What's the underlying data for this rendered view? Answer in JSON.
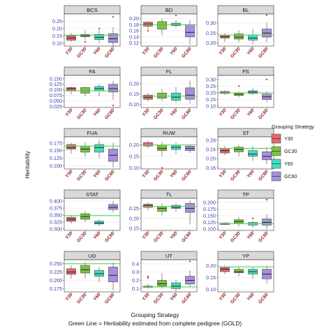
{
  "chart_data": {
    "type": "box",
    "xlabel": "Grouping Strategy",
    "ylabel": "Heritability",
    "caption": "Green Line = Heritability estimated from complete pedigree (GOLD)",
    "categories": [
      "Y30",
      "GC30",
      "Y60",
      "GC60"
    ],
    "legend": {
      "title": "Grouping Strategy",
      "items": [
        "Y30",
        "GC30",
        "Y60",
        "GC60"
      ],
      "position": "right"
    },
    "colors": {
      "Y30": "#e8646f",
      "GC30": "#7dc241",
      "Y60": "#3fdfc0",
      "GC60": "#a98ee0",
      "gold_line": "#55d555",
      "strip": "#d9d9d9",
      "outlier": "#cc1f2f",
      "tick_label": "#3a3fa8",
      "category_label": "#8b1a1a"
    },
    "panels": [
      {
        "name": "BCS",
        "yticks": [
          0.1,
          0.15,
          0.2,
          0.25
        ],
        "ylim": [
          0.08,
          0.3
        ],
        "gold": 0.155,
        "boxes": [
          {
            "min": 0.11,
            "q1": 0.12,
            "med": 0.135,
            "q3": 0.15,
            "max": 0.17,
            "out": []
          },
          {
            "min": 0.125,
            "q1": 0.145,
            "med": 0.15,
            "q3": 0.16,
            "max": 0.19,
            "out": [
              0.11
            ]
          },
          {
            "min": 0.1,
            "q1": 0.125,
            "med": 0.14,
            "q3": 0.16,
            "max": 0.19,
            "out": [
              0.2
            ]
          },
          {
            "min": 0.08,
            "q1": 0.105,
            "med": 0.13,
            "q3": 0.165,
            "max": 0.21,
            "out": [
              0.28
            ]
          }
        ]
      },
      {
        "name": "BD",
        "yticks": [
          0.12,
          0.14,
          0.16,
          0.18,
          0.2
        ],
        "ylim": [
          0.11,
          0.215
        ],
        "gold": 0.18,
        "boxes": [
          {
            "min": 0.165,
            "q1": 0.175,
            "med": 0.182,
            "q3": 0.188,
            "max": 0.192,
            "out": [
              0.16
            ]
          },
          {
            "min": 0.145,
            "q1": 0.165,
            "med": 0.18,
            "q3": 0.19,
            "max": 0.2,
            "out": []
          },
          {
            "min": 0.17,
            "q1": 0.177,
            "med": 0.18,
            "q3": 0.185,
            "max": 0.195,
            "out": [
              0.21
            ]
          },
          {
            "min": 0.115,
            "q1": 0.14,
            "med": 0.155,
            "q3": 0.18,
            "max": 0.195,
            "out": []
          }
        ]
      },
      {
        "name": "BL",
        "yticks": [
          0.2,
          0.25,
          0.3
        ],
        "ylim": [
          0.185,
          0.345
        ],
        "gold": 0.24,
        "boxes": [
          {
            "min": 0.205,
            "q1": 0.225,
            "med": 0.232,
            "q3": 0.24,
            "max": 0.25,
            "out": []
          },
          {
            "min": 0.205,
            "q1": 0.22,
            "med": 0.23,
            "q3": 0.245,
            "max": 0.265,
            "out": []
          },
          {
            "min": 0.195,
            "q1": 0.215,
            "med": 0.225,
            "q3": 0.24,
            "max": 0.27,
            "out": []
          },
          {
            "min": 0.205,
            "q1": 0.23,
            "med": 0.25,
            "q3": 0.27,
            "max": 0.3,
            "out": [
              0.34
            ]
          }
        ]
      },
      {
        "name": "FA",
        "yticks": [
          0.025,
          0.05,
          0.075,
          0.1,
          0.125,
          0.15
        ],
        "ylim": [
          0.02,
          0.165
        ],
        "gold": 0.095,
        "boxes": [
          {
            "min": 0.08,
            "q1": 0.095,
            "med": 0.105,
            "q3": 0.11,
            "max": 0.115,
            "out": []
          },
          {
            "min": 0.07,
            "q1": 0.085,
            "med": 0.095,
            "q3": 0.11,
            "max": 0.115,
            "out": []
          },
          {
            "min": 0.07,
            "q1": 0.095,
            "med": 0.105,
            "q3": 0.115,
            "max": 0.125,
            "out": []
          },
          {
            "min": 0.055,
            "q1": 0.09,
            "med": 0.105,
            "q3": 0.125,
            "max": 0.14,
            "out": [
              0.03
            ]
          }
        ]
      },
      {
        "name": "FL",
        "yticks": [
          0.1,
          0.15,
          0.2
        ],
        "ylim": [
          0.085,
          0.24
        ],
        "gold": 0.14,
        "boxes": [
          {
            "min": 0.115,
            "q1": 0.125,
            "med": 0.135,
            "q3": 0.145,
            "max": 0.155,
            "out": []
          },
          {
            "min": 0.115,
            "q1": 0.13,
            "med": 0.14,
            "q3": 0.155,
            "max": 0.175,
            "out": []
          },
          {
            "min": 0.11,
            "q1": 0.12,
            "med": 0.135,
            "q3": 0.155,
            "max": 0.185,
            "out": []
          },
          {
            "min": 0.105,
            "q1": 0.125,
            "med": 0.145,
            "q3": 0.18,
            "max": 0.215,
            "out": []
          }
        ]
      },
      {
        "name": "FS",
        "yticks": [
          0.1,
          0.15,
          0.2,
          0.25,
          0.3
        ],
        "ylim": [
          0.09,
          0.33
        ],
        "gold": 0.2,
        "boxes": [
          {
            "min": 0.185,
            "q1": 0.195,
            "med": 0.2,
            "q3": 0.21,
            "max": 0.22,
            "out": []
          },
          {
            "min": 0.165,
            "q1": 0.18,
            "med": 0.19,
            "q3": 0.2,
            "max": 0.21,
            "out": [
              0.25
            ]
          },
          {
            "min": 0.185,
            "q1": 0.195,
            "med": 0.205,
            "q3": 0.215,
            "max": 0.235,
            "out": []
          },
          {
            "min": 0.13,
            "q1": 0.15,
            "med": 0.17,
            "q3": 0.19,
            "max": 0.21,
            "out": [
              0.3
            ]
          }
        ]
      },
      {
        "name": "FUA",
        "yticks": [
          0.1,
          0.125,
          0.15,
          0.175
        ],
        "ylim": [
          0.09,
          0.195
        ],
        "gold": 0.165,
        "boxes": [
          {
            "min": 0.14,
            "q1": 0.155,
            "med": 0.16,
            "q3": 0.17,
            "max": 0.175,
            "out": []
          },
          {
            "min": 0.13,
            "q1": 0.145,
            "med": 0.155,
            "q3": 0.165,
            "max": 0.175,
            "out": []
          },
          {
            "min": 0.125,
            "q1": 0.145,
            "med": 0.16,
            "q3": 0.17,
            "max": 0.185,
            "out": []
          },
          {
            "min": 0.095,
            "q1": 0.115,
            "med": 0.135,
            "q3": 0.155,
            "max": 0.175,
            "out": []
          }
        ]
      },
      {
        "name": "RUW",
        "yticks": [
          0.1,
          0.15,
          0.2
        ],
        "ylim": [
          0.095,
          0.235
        ],
        "gold": 0.2,
        "boxes": [
          {
            "min": 0.185,
            "q1": 0.195,
            "med": 0.2,
            "q3": 0.21,
            "max": 0.22,
            "out": []
          },
          {
            "min": 0.15,
            "q1": 0.175,
            "med": 0.185,
            "q3": 0.2,
            "max": 0.215,
            "out": [
              0.1
            ]
          },
          {
            "min": 0.16,
            "q1": 0.18,
            "med": 0.19,
            "q3": 0.2,
            "max": 0.21,
            "out": []
          },
          {
            "min": 0.165,
            "q1": 0.175,
            "med": 0.185,
            "q3": 0.195,
            "max": 0.2,
            "out": []
          }
        ]
      },
      {
        "name": "ST",
        "yticks": [
          0.16,
          0.2,
          0.24,
          0.28
        ],
        "ylim": [
          0.155,
          0.295
        ],
        "gold": 0.245,
        "boxes": [
          {
            "min": 0.215,
            "q1": 0.225,
            "med": 0.235,
            "q3": 0.245,
            "max": 0.255,
            "out": []
          },
          {
            "min": 0.21,
            "q1": 0.23,
            "med": 0.24,
            "q3": 0.25,
            "max": 0.26,
            "out": []
          },
          {
            "min": 0.19,
            "q1": 0.21,
            "med": 0.22,
            "q3": 0.235,
            "max": 0.255,
            "out": []
          },
          {
            "min": 0.175,
            "q1": 0.195,
            "med": 0.21,
            "q3": 0.23,
            "max": 0.25,
            "out": []
          }
        ]
      },
      {
        "name": "STAT",
        "yticks": [
          0.3,
          0.325,
          0.35,
          0.375,
          0.4
        ],
        "ylim": [
          0.295,
          0.41
        ],
        "gold": 0.348,
        "boxes": [
          {
            "min": 0.32,
            "q1": 0.328,
            "med": 0.335,
            "q3": 0.342,
            "max": 0.35,
            "out": []
          },
          {
            "min": 0.325,
            "q1": 0.335,
            "med": 0.345,
            "q3": 0.355,
            "max": 0.365,
            "out": []
          },
          {
            "min": 0.31,
            "q1": 0.318,
            "med": 0.322,
            "q3": 0.328,
            "max": 0.335,
            "out": []
          },
          {
            "min": 0.36,
            "q1": 0.37,
            "med": 0.378,
            "q3": 0.388,
            "max": 0.4,
            "out": []
          }
        ]
      },
      {
        "name": "TL",
        "yticks": [
          0.15,
          0.2,
          0.25
        ],
        "ylim": [
          0.14,
          0.3
        ],
        "gold": 0.26,
        "boxes": [
          {
            "min": 0.24,
            "q1": 0.255,
            "med": 0.265,
            "q3": 0.27,
            "max": 0.28,
            "out": []
          },
          {
            "min": 0.215,
            "q1": 0.235,
            "med": 0.25,
            "q3": 0.26,
            "max": 0.275,
            "out": []
          },
          {
            "min": 0.235,
            "q1": 0.25,
            "med": 0.255,
            "q3": 0.265,
            "max": 0.275,
            "out": []
          },
          {
            "min": 0.17,
            "q1": 0.23,
            "med": 0.25,
            "q3": 0.275,
            "max": 0.29,
            "out": []
          }
        ]
      },
      {
        "name": "TP",
        "yticks": [
          0.1,
          0.125,
          0.15,
          0.175,
          0.2
        ],
        "ylim": [
          0.095,
          0.215
        ],
        "gold": 0.12,
        "boxes": [
          {
            "min": 0.115,
            "q1": 0.117,
            "med": 0.12,
            "q3": 0.122,
            "max": 0.125,
            "out": []
          },
          {
            "min": 0.11,
            "q1": 0.12,
            "med": 0.128,
            "q3": 0.135,
            "max": 0.145,
            "out": []
          },
          {
            "min": 0.105,
            "q1": 0.115,
            "med": 0.12,
            "q3": 0.125,
            "max": 0.13,
            "out": [
              0.14
            ]
          },
          {
            "min": 0.1,
            "q1": 0.115,
            "med": 0.125,
            "q3": 0.138,
            "max": 0.155,
            "out": [
              0.21
            ]
          }
        ]
      },
      {
        "name": "UD",
        "yticks": [
          0.175,
          0.2,
          0.225,
          0.25
        ],
        "ylim": [
          0.165,
          0.262
        ],
        "gold": 0.25,
        "boxes": [
          {
            "min": 0.205,
            "q1": 0.218,
            "med": 0.225,
            "q3": 0.235,
            "max": 0.245,
            "out": []
          },
          {
            "min": 0.205,
            "q1": 0.222,
            "med": 0.232,
            "q3": 0.245,
            "max": 0.255,
            "out": []
          },
          {
            "min": 0.195,
            "q1": 0.212,
            "med": 0.22,
            "q3": 0.23,
            "max": 0.24,
            "out": []
          },
          {
            "min": 0.17,
            "q1": 0.195,
            "med": 0.215,
            "q3": 0.24,
            "max": 0.255,
            "out": []
          }
        ]
      },
      {
        "name": "UT",
        "yticks": [
          0.1,
          0.2,
          0.3,
          0.4
        ],
        "ylim": [
          0.06,
          0.45
        ],
        "gold": 0.12,
        "boxes": [
          {
            "min": 0.1,
            "q1": 0.115,
            "med": 0.12,
            "q3": 0.13,
            "max": 0.16,
            "out": [
              0.23,
              0.25
            ]
          },
          {
            "min": 0.1,
            "q1": 0.13,
            "med": 0.16,
            "q3": 0.2,
            "max": 0.29,
            "out": []
          },
          {
            "min": 0.07,
            "q1": 0.1,
            "med": 0.13,
            "q3": 0.17,
            "max": 0.21,
            "out": []
          },
          {
            "min": 0.12,
            "q1": 0.155,
            "med": 0.2,
            "q3": 0.25,
            "max": 0.32,
            "out": [
              0.43
            ]
          }
        ]
      },
      {
        "name": "YP",
        "yticks": [
          0.1,
          0.15,
          0.2
        ],
        "ylim": [
          0.09,
          0.225
        ],
        "gold": 0.195,
        "boxes": [
          {
            "min": 0.165,
            "q1": 0.175,
            "med": 0.185,
            "q3": 0.192,
            "max": 0.2,
            "out": []
          },
          {
            "min": 0.155,
            "q1": 0.17,
            "med": 0.175,
            "q3": 0.185,
            "max": 0.195,
            "out": []
          },
          {
            "min": 0.145,
            "q1": 0.165,
            "med": 0.175,
            "q3": 0.185,
            "max": 0.195,
            "out": []
          },
          {
            "min": 0.125,
            "q1": 0.145,
            "med": 0.165,
            "q3": 0.185,
            "max": 0.2,
            "out": []
          }
        ]
      }
    ]
  }
}
